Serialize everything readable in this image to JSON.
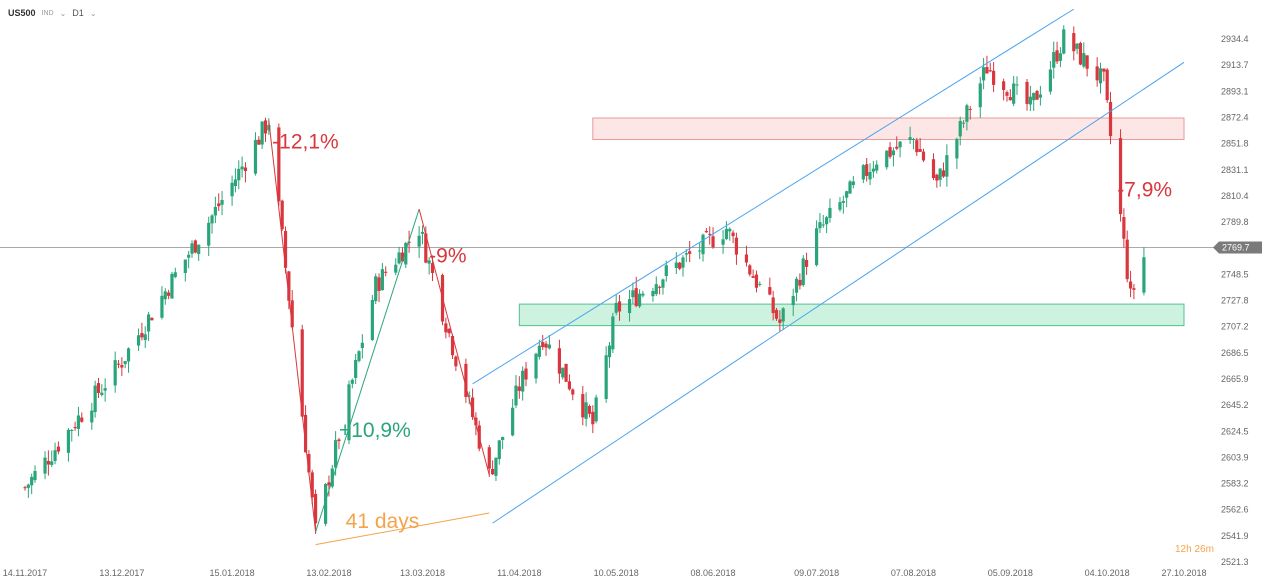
{
  "header": {
    "symbol": "US500",
    "exchange": "IND",
    "timeframe": "D1"
  },
  "timer": "12h 26m",
  "current_price": "2769.7",
  "colors": {
    "up": "#2aa57a",
    "down": "#d9363e",
    "channel": "#4aa3f0",
    "green_zone": "#bdeed6",
    "red_zone": "#fbdede",
    "orange": "#f5a34a"
  },
  "chart_data": {
    "type": "candlestick",
    "title": "",
    "xlabel": "",
    "ylabel": "",
    "ylim": [
      2515,
      2950
    ],
    "x_ticks": [
      "14.11.2017",
      "13.12.2017",
      "15.01.2018",
      "13.02.2018",
      "13.03.2018",
      "11.04.2018",
      "10.05.2018",
      "08.06.2018",
      "09.07.2018",
      "07.08.2018",
      "05.09.2018",
      "04.10.2018",
      "27.10.2018"
    ],
    "y_ticks": [
      "2934.4",
      "2913.7",
      "2893.1",
      "2872.4",
      "2851.8",
      "2831.1",
      "2810.4",
      "2789.8",
      "2769.7",
      "2748.5",
      "2727.8",
      "2707.2",
      "2686.5",
      "2665.9",
      "2645.2",
      "2624.5",
      "2603.9",
      "2583.2",
      "2562.6",
      "2541.9",
      "2521.3"
    ],
    "close_path": [
      [
        "14.11.2017",
        2580
      ],
      [
        "13.12.2017",
        2680
      ],
      [
        "15.01.2018",
        2820
      ],
      [
        "26.01.2018",
        2870
      ],
      [
        "09.02.2018",
        2545
      ],
      [
        "27.02.2018",
        2740
      ],
      [
        "12.03.2018",
        2785
      ],
      [
        "02.04.2018",
        2590
      ],
      [
        "11.04.2018",
        2660
      ],
      [
        "18.04.2018",
        2700
      ],
      [
        "03.05.2018",
        2630
      ],
      [
        "10.05.2018",
        2720
      ],
      [
        "12.06.2018",
        2785
      ],
      [
        "28.06.2018",
        2710
      ],
      [
        "09.07.2018",
        2780
      ],
      [
        "27.07.2018",
        2840
      ],
      [
        "07.08.2018",
        2855
      ],
      [
        "14.08.2018",
        2820
      ],
      [
        "29.08.2018",
        2912
      ],
      [
        "11.09.2018",
        2880
      ],
      [
        "21.09.2018",
        2935
      ],
      [
        "03.10.2018",
        2900
      ],
      [
        "11.10.2018",
        2730
      ],
      [
        "15.10.2018",
        2762
      ]
    ],
    "zones": [
      {
        "type": "resistance",
        "from": 2855,
        "to": 2872
      },
      {
        "type": "support",
        "from": 2708,
        "to": 2725
      }
    ],
    "channel": {
      "lower": [
        [
          "03.04.2018",
          2552
        ],
        [
          "27.10.2018",
          2916
        ]
      ],
      "upper": [
        [
          "28.03.2018",
          2662
        ],
        [
          "24.09.2018",
          2958
        ]
      ]
    },
    "annotations": [
      "-12,1%",
      "+10,9%",
      "-9%",
      "41 days",
      "-7,9%"
    ]
  }
}
